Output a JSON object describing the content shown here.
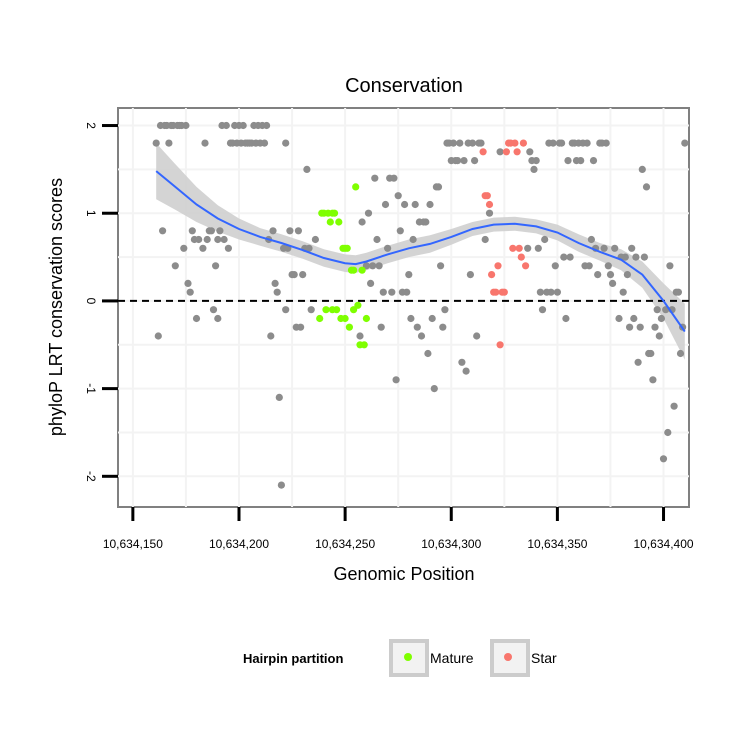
{
  "chart_data": {
    "type": "scatter",
    "title": "Conservation",
    "xlabel": "Genomic Position",
    "ylabel": "phyloP LRT conservation scores",
    "xlim": [
      10634143,
      10634412
    ],
    "ylim": [
      -2.35,
      2.2
    ],
    "xticks": [
      10634150,
      10634200,
      10634250,
      10634300,
      10634350,
      10634400
    ],
    "xtick_labels": [
      "10,634,150",
      "10,634,200",
      "10,634,250",
      "10,634,300",
      "10,634,350",
      "10,634,400"
    ],
    "yticks": [
      -2,
      -1,
      0,
      1,
      2
    ],
    "ytick_labels": [
      "-2",
      "-1",
      "0",
      "1",
      "2"
    ],
    "hline": 0,
    "grid": true,
    "legend": {
      "title": "Hairpin partition",
      "position": "bottom",
      "entries": [
        {
          "label": "Mature",
          "color": "#7FFF00"
        },
        {
          "label": "Star",
          "color": "#F8766D"
        }
      ]
    },
    "colors": {
      "other": "#8C8C8C",
      "mature": "#7FFF00",
      "star": "#F8766D",
      "smooth": "#3366FF",
      "ribbon": "#CCCCCC"
    },
    "series": [
      {
        "name": "Other",
        "points": [
          [
            10634161,
            1.8
          ],
          [
            10634162,
            -0.4
          ],
          [
            10634163,
            2.0
          ],
          [
            10634164,
            0.8
          ],
          [
            10634165,
            2.0
          ],
          [
            10634166,
            2.0
          ],
          [
            10634167,
            1.8
          ],
          [
            10634168,
            2.0
          ],
          [
            10634169,
            2.0
          ],
          [
            10634170,
            0.4
          ],
          [
            10634171,
            2.0
          ],
          [
            10634172,
            2.0
          ],
          [
            10634173,
            2.0
          ],
          [
            10634174,
            0.6
          ],
          [
            10634175,
            2.0
          ],
          [
            10634176,
            0.2
          ],
          [
            10634177,
            0.1
          ],
          [
            10634178,
            0.8
          ],
          [
            10634179,
            0.7
          ],
          [
            10634180,
            -0.2
          ],
          [
            10634181,
            0.7
          ],
          [
            10634183,
            0.6
          ],
          [
            10634184,
            1.8
          ],
          [
            10634185,
            0.7
          ],
          [
            10634186,
            0.8
          ],
          [
            10634187,
            0.8
          ],
          [
            10634188,
            -0.1
          ],
          [
            10634189,
            0.4
          ],
          [
            10634190,
            -0.2
          ],
          [
            10634190,
            0.7
          ],
          [
            10634191,
            0.8
          ],
          [
            10634192,
            2.0
          ],
          [
            10634193,
            0.7
          ],
          [
            10634194,
            2.0
          ],
          [
            10634195,
            0.6
          ],
          [
            10634196,
            1.8
          ],
          [
            10634197,
            1.8
          ],
          [
            10634198,
            2.0
          ],
          [
            10634199,
            1.8
          ],
          [
            10634200,
            2.0
          ],
          [
            10634201,
            1.8
          ],
          [
            10634202,
            2.0
          ],
          [
            10634203,
            1.8
          ],
          [
            10634204,
            1.8
          ],
          [
            10634205,
            1.8
          ],
          [
            10634206,
            1.8
          ],
          [
            10634207,
            2.0
          ],
          [
            10634208,
            1.8
          ],
          [
            10634209,
            2.0
          ],
          [
            10634210,
            1.8
          ],
          [
            10634211,
            2.0
          ],
          [
            10634212,
            1.8
          ],
          [
            10634213,
            2.0
          ],
          [
            10634214,
            0.7
          ],
          [
            10634215,
            -0.4
          ],
          [
            10634216,
            0.8
          ],
          [
            10634217,
            0.2
          ],
          [
            10634218,
            0.1
          ],
          [
            10634219,
            -1.1
          ],
          [
            10634220,
            -2.1
          ],
          [
            10634221,
            0.6
          ],
          [
            10634222,
            1.8
          ],
          [
            10634222,
            -0.1
          ],
          [
            10634223,
            0.6
          ],
          [
            10634224,
            0.8
          ],
          [
            10634225,
            0.3
          ],
          [
            10634226,
            0.3
          ],
          [
            10634227,
            -0.3
          ],
          [
            10634228,
            0.8
          ],
          [
            10634229,
            -0.3
          ],
          [
            10634230,
            0.3
          ],
          [
            10634231,
            0.6
          ],
          [
            10634232,
            1.5
          ],
          [
            10634233,
            0.6
          ],
          [
            10634234,
            -0.1
          ],
          [
            10634236,
            0.7
          ],
          [
            10634257,
            -0.4
          ],
          [
            10634258,
            0.9
          ],
          [
            10634260,
            0.4
          ],
          [
            10634261,
            1.0
          ],
          [
            10634262,
            0.2
          ],
          [
            10634263,
            0.4
          ],
          [
            10634264,
            1.4
          ],
          [
            10634265,
            0.7
          ],
          [
            10634266,
            0.4
          ],
          [
            10634267,
            -0.3
          ],
          [
            10634268,
            0.1
          ],
          [
            10634269,
            1.1
          ],
          [
            10634270,
            0.6
          ],
          [
            10634271,
            1.4
          ],
          [
            10634272,
            0.1
          ],
          [
            10634273,
            1.4
          ],
          [
            10634274,
            -0.9
          ],
          [
            10634275,
            1.2
          ],
          [
            10634276,
            0.8
          ],
          [
            10634277,
            0.1
          ],
          [
            10634278,
            1.1
          ],
          [
            10634279,
            0.1
          ],
          [
            10634280,
            0.3
          ],
          [
            10634281,
            -0.2
          ],
          [
            10634282,
            0.7
          ],
          [
            10634283,
            1.1
          ],
          [
            10634284,
            -0.3
          ],
          [
            10634285,
            0.9
          ],
          [
            10634286,
            -0.4
          ],
          [
            10634287,
            0.9
          ],
          [
            10634288,
            0.9
          ],
          [
            10634289,
            -0.6
          ],
          [
            10634290,
            1.1
          ],
          [
            10634291,
            -0.2
          ],
          [
            10634292,
            -1.0
          ],
          [
            10634293,
            1.3
          ],
          [
            10634294,
            1.3
          ],
          [
            10634295,
            0.4
          ],
          [
            10634296,
            -0.3
          ],
          [
            10634297,
            -0.1
          ],
          [
            10634298,
            1.8
          ],
          [
            10634299,
            1.8
          ],
          [
            10634300,
            1.6
          ],
          [
            10634301,
            1.8
          ],
          [
            10634302,
            1.6
          ],
          [
            10634303,
            1.6
          ],
          [
            10634304,
            1.8
          ],
          [
            10634305,
            -0.7
          ],
          [
            10634306,
            1.6
          ],
          [
            10634307,
            -0.8
          ],
          [
            10634308,
            1.8
          ],
          [
            10634309,
            0.3
          ],
          [
            10634310,
            1.8
          ],
          [
            10634311,
            1.6
          ],
          [
            10634312,
            -0.4
          ],
          [
            10634313,
            1.8
          ],
          [
            10634314,
            1.8
          ],
          [
            10634316,
            0.7
          ],
          [
            10634318,
            1.0
          ],
          [
            10634323,
            1.7
          ],
          [
            10634336,
            0.6
          ],
          [
            10634337,
            1.7
          ],
          [
            10634338,
            1.6
          ],
          [
            10634339,
            1.5
          ],
          [
            10634340,
            1.6
          ],
          [
            10634341,
            0.6
          ],
          [
            10634342,
            0.1
          ],
          [
            10634343,
            -0.1
          ],
          [
            10634344,
            0.7
          ],
          [
            10634345,
            0.1
          ],
          [
            10634346,
            1.8
          ],
          [
            10634347,
            0.1
          ],
          [
            10634348,
            1.8
          ],
          [
            10634349,
            0.4
          ],
          [
            10634350,
            0.1
          ],
          [
            10634351,
            1.8
          ],
          [
            10634352,
            1.8
          ],
          [
            10634353,
            0.5
          ],
          [
            10634354,
            -0.2
          ],
          [
            10634355,
            1.6
          ],
          [
            10634356,
            0.5
          ],
          [
            10634357,
            1.8
          ],
          [
            10634358,
            1.8
          ],
          [
            10634359,
            1.6
          ],
          [
            10634360,
            1.8
          ],
          [
            10634361,
            1.6
          ],
          [
            10634362,
            1.8
          ],
          [
            10634363,
            0.4
          ],
          [
            10634364,
            1.8
          ],
          [
            10634365,
            0.4
          ],
          [
            10634366,
            0.7
          ],
          [
            10634367,
            1.6
          ],
          [
            10634368,
            0.6
          ],
          [
            10634369,
            0.3
          ],
          [
            10634370,
            1.8
          ],
          [
            10634371,
            1.8
          ],
          [
            10634372,
            0.6
          ],
          [
            10634373,
            1.8
          ],
          [
            10634374,
            0.4
          ],
          [
            10634375,
            0.3
          ],
          [
            10634376,
            0.2
          ],
          [
            10634377,
            0.6
          ],
          [
            10634379,
            -0.2
          ],
          [
            10634380,
            0.5
          ],
          [
            10634381,
            0.1
          ],
          [
            10634382,
            0.5
          ],
          [
            10634383,
            0.3
          ],
          [
            10634384,
            -0.3
          ],
          [
            10634385,
            0.6
          ],
          [
            10634386,
            -0.2
          ],
          [
            10634387,
            0.5
          ],
          [
            10634388,
            -0.7
          ],
          [
            10634389,
            -0.3
          ],
          [
            10634390,
            1.5
          ],
          [
            10634391,
            0.5
          ],
          [
            10634392,
            1.3
          ],
          [
            10634393,
            -0.6
          ],
          [
            10634394,
            -0.6
          ],
          [
            10634395,
            -0.9
          ],
          [
            10634396,
            -0.3
          ],
          [
            10634397,
            -0.1
          ],
          [
            10634398,
            -0.4
          ],
          [
            10634399,
            -0.2
          ],
          [
            10634400,
            -1.8
          ],
          [
            10634401,
            -0.1
          ],
          [
            10634402,
            -1.5
          ],
          [
            10634403,
            0.4
          ],
          [
            10634404,
            -0.1
          ],
          [
            10634405,
            -1.2
          ],
          [
            10634406,
            0.1
          ],
          [
            10634407,
            0.1
          ],
          [
            10634408,
            -0.6
          ],
          [
            10634409,
            -0.3
          ],
          [
            10634410,
            1.8
          ]
        ]
      },
      {
        "name": "Mature",
        "points": [
          [
            10634238,
            -0.2
          ],
          [
            10634239,
            1.0
          ],
          [
            10634240,
            1.0
          ],
          [
            10634241,
            -0.1
          ],
          [
            10634242,
            1.0
          ],
          [
            10634243,
            0.9
          ],
          [
            10634244,
            -0.1
          ],
          [
            10634244,
            1.0
          ],
          [
            10634245,
            1.0
          ],
          [
            10634246,
            -0.1
          ],
          [
            10634247,
            0.9
          ],
          [
            10634248,
            -0.2
          ],
          [
            10634249,
            0.6
          ],
          [
            10634250,
            -0.2
          ],
          [
            10634250,
            0.6
          ],
          [
            10634251,
            0.6
          ],
          [
            10634252,
            -0.3
          ],
          [
            10634253,
            0.35
          ],
          [
            10634254,
            -0.1
          ],
          [
            10634254,
            0.35
          ],
          [
            10634255,
            1.3
          ],
          [
            10634256,
            -0.05
          ],
          [
            10634257,
            -0.5
          ],
          [
            10634258,
            0.35
          ],
          [
            10634259,
            -0.5
          ],
          [
            10634260,
            -0.2
          ]
        ]
      },
      {
        "name": "Star",
        "points": [
          [
            10634315,
            1.7
          ],
          [
            10634316,
            1.2
          ],
          [
            10634317,
            1.2
          ],
          [
            10634318,
            1.1
          ],
          [
            10634319,
            0.3
          ],
          [
            10634320,
            0.1
          ],
          [
            10634321,
            0.1
          ],
          [
            10634322,
            0.4
          ],
          [
            10634323,
            -0.5
          ],
          [
            10634324,
            0.1
          ],
          [
            10634325,
            0.1
          ],
          [
            10634326,
            1.7
          ],
          [
            10634327,
            1.8
          ],
          [
            10634328,
            1.8
          ],
          [
            10634329,
            0.6
          ],
          [
            10634330,
            1.8
          ],
          [
            10634331,
            1.7
          ],
          [
            10634332,
            0.6
          ],
          [
            10634333,
            0.5
          ],
          [
            10634334,
            1.8
          ],
          [
            10634335,
            0.4
          ]
        ]
      }
    ],
    "smooth": {
      "name": "loess",
      "x": [
        10634161,
        10634170,
        10634180,
        10634190,
        10634200,
        10634210,
        10634220,
        10634230,
        10634240,
        10634250,
        10634255,
        10634260,
        10634270,
        10634280,
        10634290,
        10634300,
        10634310,
        10634320,
        10634330,
        10634340,
        10634350,
        10634360,
        10634370,
        10634380,
        10634390,
        10634400,
        10634410
      ],
      "y": [
        1.48,
        1.3,
        1.1,
        0.94,
        0.82,
        0.73,
        0.66,
        0.58,
        0.49,
        0.43,
        0.42,
        0.45,
        0.53,
        0.6,
        0.65,
        0.73,
        0.82,
        0.87,
        0.88,
        0.85,
        0.78,
        0.66,
        0.56,
        0.47,
        0.3,
        0.0,
        -0.35
      ],
      "se": [
        0.32,
        0.26,
        0.2,
        0.15,
        0.12,
        0.1,
        0.1,
        0.1,
        0.1,
        0.1,
        0.1,
        0.1,
        0.1,
        0.1,
        0.1,
        0.09,
        0.08,
        0.08,
        0.08,
        0.08,
        0.09,
        0.1,
        0.1,
        0.12,
        0.15,
        0.2,
        0.32
      ]
    }
  }
}
